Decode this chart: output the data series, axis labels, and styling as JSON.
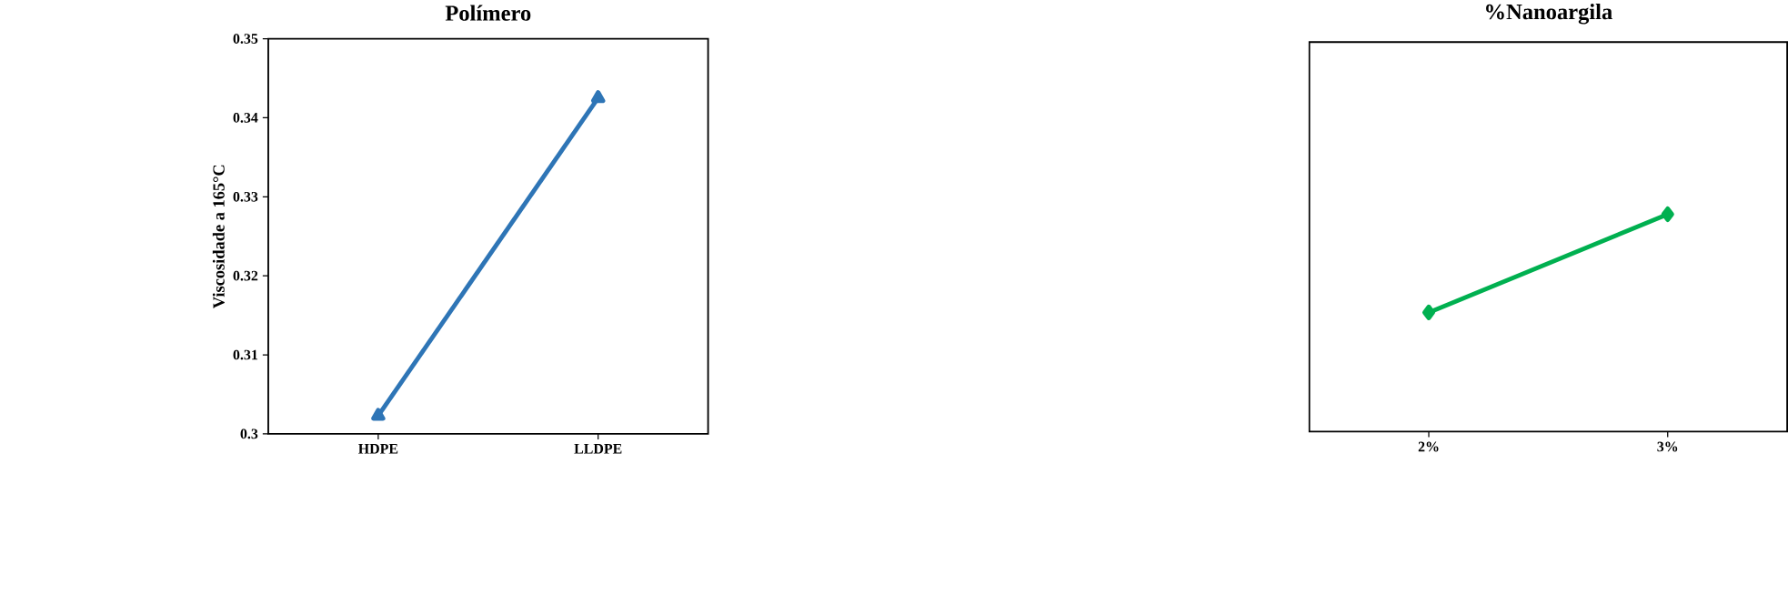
{
  "chart_data": [
    {
      "type": "line",
      "title": "Polímero",
      "ylabel": "Viscosidade a 165°C",
      "categories": [
        "HDPE",
        "LLDPE"
      ],
      "series": [
        {
          "color": "#2e75b6",
          "values": [
            0.3023,
            0.3425
          ]
        }
      ],
      "marker": "triangle",
      "ylim": [
        0.3,
        0.35
      ],
      "yticks": [
        0.3,
        0.31,
        0.32,
        0.33,
        0.34,
        0.35
      ]
    },
    {
      "type": "line",
      "title": "%Nanoargila",
      "categories": [
        "2%",
        "3%"
      ],
      "series": [
        {
          "color": "#00b050",
          "values": [
            0.3153,
            0.3279
          ]
        }
      ],
      "marker": "diamond",
      "ylim": [
        0.3,
        0.35
      ],
      "tick_labels": "x"
    }
  ]
}
